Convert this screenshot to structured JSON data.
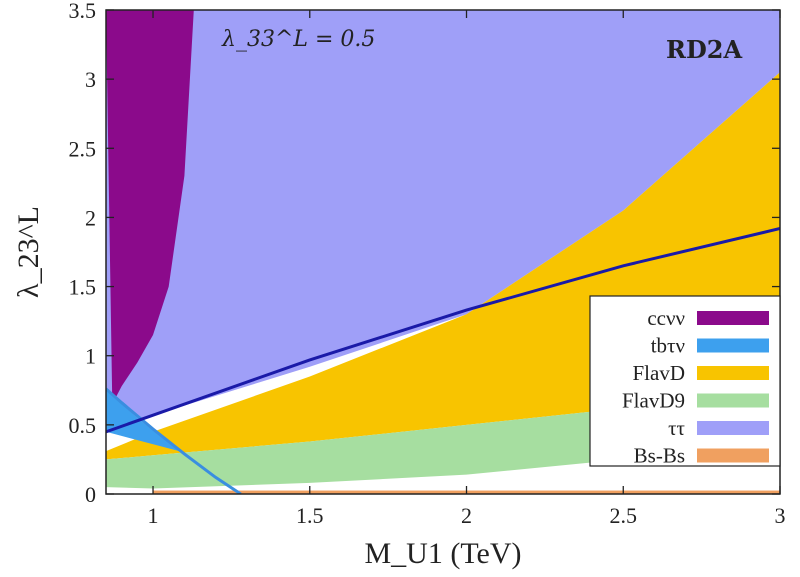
{
  "chart_data": {
    "type": "area",
    "title": "",
    "xlabel": "M_U1 (TeV)",
    "ylabel": "λ_23^L",
    "xlim": [
      0.85,
      3.0
    ],
    "ylim": [
      0,
      3.5
    ],
    "xticks": [
      "1",
      "1.5",
      "2",
      "2.5",
      "3"
    ],
    "yticks": [
      "0",
      "0.5",
      "1",
      "1.5",
      "2",
      "2.5",
      "3",
      "3.5"
    ],
    "annotation": "λ_33^L = 0.5",
    "model_label": "RD2A",
    "legend_position": "right",
    "series": [
      {
        "name": "ccνν",
        "color": "#8b0a8b",
        "region_x": [
          0.85,
          0.87,
          0.9,
          0.95,
          1.0,
          1.05,
          1.1,
          1.13,
          1.13
        ],
        "region_y": [
          3.5,
          0.65,
          0.78,
          0.95,
          1.15,
          1.5,
          2.3,
          3.5,
          3.5
        ]
      },
      {
        "name": "tbτν",
        "color": "#3da0ee",
        "region_x": [
          0.85,
          0.85,
          0.9,
          0.95,
          1.0,
          1.05,
          1.1
        ],
        "region_y": [
          0.45,
          0.76,
          0.65,
          0.55,
          0.46,
          0.38,
          0.3
        ]
      },
      {
        "name": "FlavD",
        "color": "#f8c400",
        "upper_x": [
          0.85,
          1.0,
          1.5,
          2.0,
          2.5,
          3.0
        ],
        "upper_y": [
          0.31,
          0.45,
          0.85,
          1.3,
          2.05,
          3.05
        ],
        "lower_x": [
          0.85,
          1.0,
          1.5,
          2.0,
          2.5,
          3.0
        ],
        "lower_y": [
          0.25,
          0.28,
          0.38,
          0.5,
          0.62,
          0.76
        ]
      },
      {
        "name": "FlavD9",
        "color": "#a6dea0",
        "upper_x": [
          0.85,
          1.0,
          1.5,
          2.0,
          2.5,
          3.0
        ],
        "upper_y": [
          0.25,
          0.28,
          0.38,
          0.5,
          0.62,
          0.76
        ],
        "lower_x": [
          0.85,
          1.0,
          1.5,
          2.0,
          2.5,
          3.0
        ],
        "lower_y": [
          0.05,
          0.04,
          0.08,
          0.14,
          0.25,
          0.34
        ]
      },
      {
        "name": "ττ",
        "color": "#9f9ff8",
        "lower_x": [
          0.85,
          1.0,
          1.5,
          2.0,
          2.5,
          3.0
        ],
        "lower_y": [
          0.45,
          0.57,
          0.92,
          1.3,
          2.05,
          3.05
        ]
      },
      {
        "name": "Bs-Bs",
        "color": "#f0a060",
        "band_y": [
          0.0,
          0.025
        ],
        "band_x": [
          1.0,
          3.0
        ]
      }
    ],
    "blue_line": {
      "color": "#1a1aa8",
      "x": [
        0.85,
        1.0,
        1.5,
        2.0,
        2.5,
        3.0
      ],
      "y": [
        0.45,
        0.57,
        0.97,
        1.33,
        1.65,
        1.92
      ]
    },
    "tb_boundary": {
      "color": "#3a8ee0",
      "x": [
        0.85,
        0.9,
        1.0,
        1.1,
        1.2,
        1.28
      ],
      "y": [
        0.76,
        0.66,
        0.47,
        0.29,
        0.12,
        0.0
      ]
    }
  }
}
